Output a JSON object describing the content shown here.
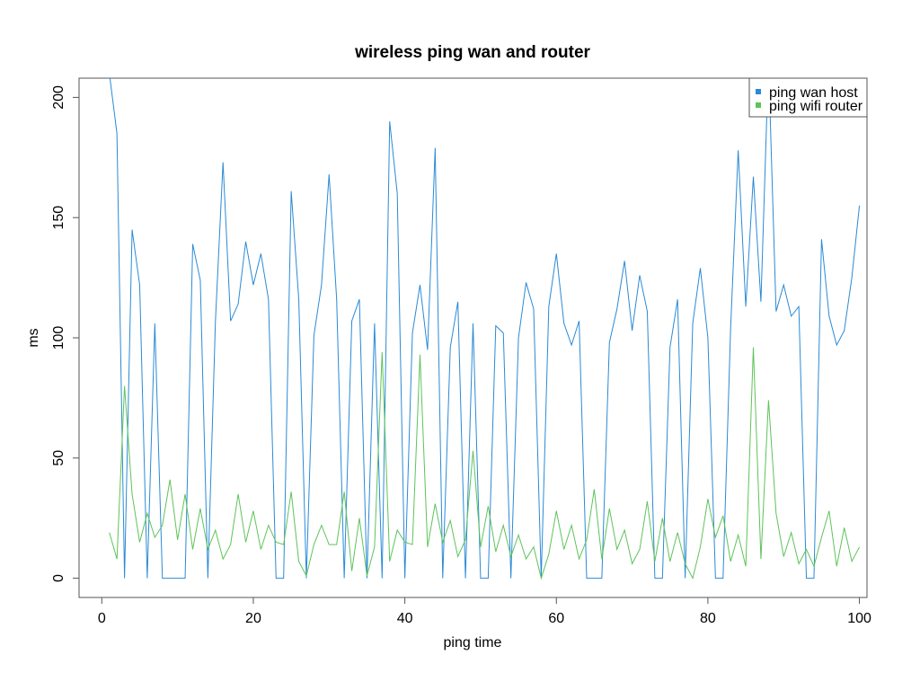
{
  "chart_data": {
    "type": "line",
    "title": "wireless ping wan and router",
    "xlabel": "ping time",
    "ylabel": "ms",
    "xlim": [
      -3,
      101
    ],
    "ylim": [
      -8,
      208
    ],
    "xticks": [
      0,
      20,
      40,
      60,
      80,
      100
    ],
    "yticks": [
      0,
      50,
      100,
      150,
      200
    ],
    "grid": false,
    "legend_position": "top-right",
    "x": [
      1,
      2,
      3,
      4,
      5,
      6,
      7,
      8,
      9,
      10,
      11,
      12,
      13,
      14,
      15,
      16,
      17,
      18,
      19,
      20,
      21,
      22,
      23,
      24,
      25,
      26,
      27,
      28,
      29,
      30,
      31,
      32,
      33,
      34,
      35,
      36,
      37,
      38,
      39,
      40,
      41,
      42,
      43,
      44,
      45,
      46,
      47,
      48,
      49,
      50,
      51,
      52,
      53,
      54,
      55,
      56,
      57,
      58,
      59,
      60,
      61,
      62,
      63,
      64,
      65,
      66,
      67,
      68,
      69,
      70,
      71,
      72,
      73,
      74,
      75,
      76,
      77,
      78,
      79,
      80,
      81,
      82,
      83,
      84,
      85,
      86,
      87,
      88,
      89,
      90,
      91,
      92,
      93,
      94,
      95,
      96,
      97,
      98,
      99,
      100
    ],
    "series": [
      {
        "name": "ping wan host",
        "color": "#2a8ad6",
        "values": [
          210,
          185,
          0,
          145,
          122,
          0,
          106,
          0,
          0,
          0,
          0,
          139,
          124,
          0,
          107,
          173,
          107,
          114,
          140,
          122,
          135,
          116,
          0,
          0,
          161,
          116,
          0,
          101,
          122,
          168,
          116,
          0,
          107,
          116,
          0,
          106,
          0,
          190,
          160,
          0,
          102,
          122,
          95,
          179,
          0,
          96,
          115,
          0,
          106,
          0,
          0,
          105,
          102,
          0,
          100,
          123,
          112,
          0,
          113,
          135,
          106,
          97,
          107,
          0,
          0,
          0,
          98,
          112,
          132,
          103,
          126,
          111,
          0,
          0,
          96,
          116,
          0,
          106,
          129,
          100,
          0,
          0,
          104,
          178,
          113,
          167,
          115,
          215,
          111,
          122,
          109,
          113,
          0,
          0,
          141,
          109,
          97,
          103,
          125,
          155
        ]
      },
      {
        "name": "ping wifi router",
        "color": "#5ec35a",
        "values": [
          19,
          8,
          80,
          35,
          15,
          27,
          17,
          22,
          41,
          16,
          35,
          12,
          29,
          12,
          20,
          8,
          14,
          35,
          15,
          28,
          12,
          22,
          15,
          14,
          36,
          7,
          1,
          14,
          22,
          14,
          14,
          36,
          3,
          25,
          1,
          13,
          94,
          7,
          20,
          15,
          14,
          93,
          13,
          31,
          15,
          24,
          9,
          16,
          53,
          13,
          30,
          11,
          22,
          9,
          18,
          8,
          13,
          0,
          10,
          28,
          12,
          22,
          8,
          16,
          37,
          8,
          29,
          12,
          20,
          6,
          12,
          32,
          7,
          25,
          7,
          19,
          6,
          0,
          13,
          33,
          17,
          26,
          7,
          18,
          5,
          96,
          8,
          74,
          27,
          9,
          19,
          6,
          12,
          5,
          17,
          28,
          5,
          21,
          7,
          13
        ]
      }
    ]
  }
}
